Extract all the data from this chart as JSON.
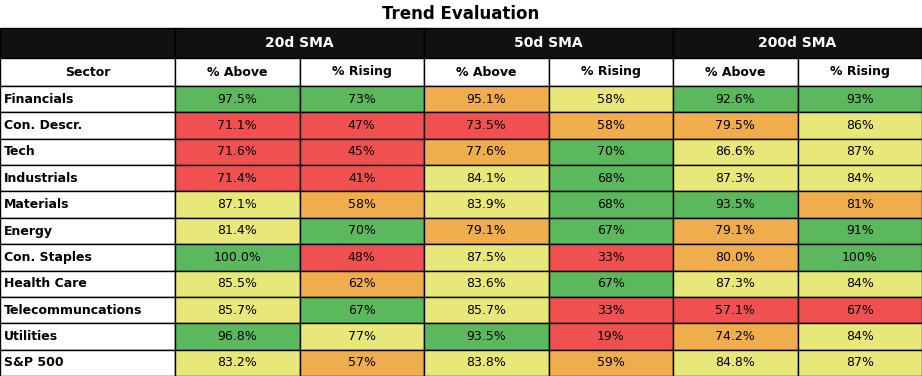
{
  "title": "Trend Evaluation",
  "sectors": [
    "Financials",
    "Con. Descr.",
    "Tech",
    "Industrials",
    "Materials",
    "Energy",
    "Con. Staples",
    "Health Care",
    "Telecommuncations",
    "Utilities",
    "S&P 500"
  ],
  "headers_level1": [
    "20d SMA",
    "50d SMA",
    "200d SMA"
  ],
  "headers_level2": [
    "% Above",
    "% Rising",
    "% Above",
    "% Rising",
    "% Above",
    "% Rising"
  ],
  "col_header": "Sector",
  "data": [
    [
      "97.5%",
      "73%",
      "95.1%",
      "58%",
      "92.6%",
      "93%"
    ],
    [
      "71.1%",
      "47%",
      "73.5%",
      "58%",
      "79.5%",
      "86%"
    ],
    [
      "71.6%",
      "45%",
      "77.6%",
      "70%",
      "86.6%",
      "87%"
    ],
    [
      "71.4%",
      "41%",
      "84.1%",
      "68%",
      "87.3%",
      "84%"
    ],
    [
      "87.1%",
      "58%",
      "83.9%",
      "68%",
      "93.5%",
      "81%"
    ],
    [
      "81.4%",
      "70%",
      "79.1%",
      "67%",
      "79.1%",
      "91%"
    ],
    [
      "100.0%",
      "48%",
      "87.5%",
      "33%",
      "80.0%",
      "100%"
    ],
    [
      "85.5%",
      "62%",
      "83.6%",
      "67%",
      "87.3%",
      "84%"
    ],
    [
      "85.7%",
      "67%",
      "85.7%",
      "33%",
      "57.1%",
      "67%"
    ],
    [
      "96.8%",
      "77%",
      "93.5%",
      "19%",
      "74.2%",
      "84%"
    ],
    [
      "83.2%",
      "57%",
      "83.8%",
      "59%",
      "84.8%",
      "87%"
    ]
  ],
  "cell_colors": [
    [
      "#5cb85c",
      "#5cb85c",
      "#f0ad4e",
      "#e8e87a",
      "#5cb85c",
      "#5cb85c"
    ],
    [
      "#f05050",
      "#f05050",
      "#f05050",
      "#f0ad4e",
      "#f0ad4e",
      "#e8e87a"
    ],
    [
      "#f05050",
      "#f05050",
      "#f0ad4e",
      "#5cb85c",
      "#e8e87a",
      "#e8e87a"
    ],
    [
      "#f05050",
      "#f05050",
      "#e8e87a",
      "#5cb85c",
      "#e8e87a",
      "#e8e87a"
    ],
    [
      "#e8e87a",
      "#f0ad4e",
      "#e8e87a",
      "#5cb85c",
      "#5cb85c",
      "#f0ad4e"
    ],
    [
      "#e8e87a",
      "#5cb85c",
      "#f0ad4e",
      "#5cb85c",
      "#f0ad4e",
      "#5cb85c"
    ],
    [
      "#5cb85c",
      "#f05050",
      "#e8e87a",
      "#f05050",
      "#f0ad4e",
      "#5cb85c"
    ],
    [
      "#e8e87a",
      "#f0ad4e",
      "#e8e87a",
      "#5cb85c",
      "#e8e87a",
      "#e8e87a"
    ],
    [
      "#e8e87a",
      "#5cb85c",
      "#e8e87a",
      "#f05050",
      "#f05050",
      "#f05050"
    ],
    [
      "#5cb85c",
      "#e8e87a",
      "#5cb85c",
      "#f05050",
      "#f0ad4e",
      "#e8e87a"
    ],
    [
      "#e8e87a",
      "#f0ad4e",
      "#e8e87a",
      "#f0ad4e",
      "#e8e87a",
      "#e8e87a"
    ]
  ],
  "header_bg": "#111111",
  "header_text": "#ffffff",
  "subheader_bg": "#ffffff",
  "subheader_text": "#000000",
  "title_fontsize": 12,
  "header1_fontsize": 10,
  "header2_fontsize": 9,
  "data_fontsize": 9,
  "sector_fontsize": 9,
  "fig_width": 9.22,
  "fig_height": 3.76,
  "dpi": 100
}
